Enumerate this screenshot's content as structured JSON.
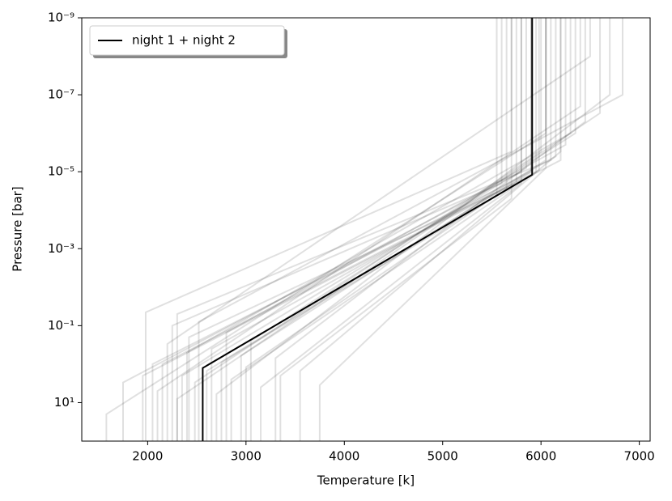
{
  "chart_data": {
    "type": "line",
    "x_label": "Temperature [k]",
    "y_label": "Pressure [bar]",
    "xlim": [
      1330,
      7110
    ],
    "xticks": [
      2000,
      3000,
      4000,
      5000,
      6000,
      7000
    ],
    "ylim": [
      100,
      1e-09
    ],
    "y_log": true,
    "yticks": [
      {
        "value": 1e-09,
        "label": "10⁻⁹"
      },
      {
        "value": 1e-07,
        "label": "10⁻⁷"
      },
      {
        "value": 1e-05,
        "label": "10⁻⁵"
      },
      {
        "value": 0.001,
        "label": "10⁻³"
      },
      {
        "value": 0.1,
        "label": "10⁻¹"
      },
      {
        "value": 10,
        "label": "10¹"
      }
    ],
    "legend_position": "upper left",
    "series": [
      {
        "name": "night 1 + night 2",
        "color": "#000000",
        "x": [
          2560,
          2560,
          5910,
          5910
        ],
        "values": [
          100,
          1.26,
          1.2e-05,
          1e-09
        ]
      },
      {
        "color": "#000000",
        "x": [
          1580,
          1580,
          6050,
          6050
        ],
        "values": [
          100,
          20,
          1e-06,
          1e-09
        ]
      },
      {
        "color": "#000000",
        "x": [
          1750,
          1750,
          5800,
          5800
        ],
        "values": [
          100,
          3,
          1e-05,
          1e-09
        ]
      },
      {
        "color": "#000000",
        "x": [
          1950,
          1950,
          6200,
          6200
        ],
        "values": [
          100,
          2,
          5e-06,
          1e-09
        ]
      },
      {
        "color": "#000000",
        "x": [
          1980,
          1980,
          5700,
          5700
        ],
        "values": [
          100,
          0.045,
          3e-06,
          1e-09
        ]
      },
      {
        "color": "#000000",
        "x": [
          2100,
          2100,
          6400,
          6400
        ],
        "values": [
          100,
          5,
          2e-07,
          1e-09
        ]
      },
      {
        "color": "#000000",
        "x": [
          2150,
          2150,
          5950,
          5950
        ],
        "values": [
          100,
          1,
          1e-05,
          1e-09
        ]
      },
      {
        "color": "#000000",
        "x": [
          2200,
          2200,
          6500,
          6500
        ],
        "values": [
          100,
          0.3,
          1e-08,
          1e-09
        ]
      },
      {
        "color": "#000000",
        "x": [
          2250,
          2250,
          5600,
          5600
        ],
        "values": [
          100,
          0.1,
          2e-05,
          1e-09
        ]
      },
      {
        "color": "#000000",
        "x": [
          2300,
          2300,
          6100,
          6100
        ],
        "values": [
          100,
          0.05,
          5e-06,
          1e-09
        ]
      },
      {
        "color": "#000000",
        "x": [
          2350,
          2350,
          5850,
          5850
        ],
        "values": [
          100,
          2,
          8e-06,
          1e-09
        ]
      },
      {
        "color": "#000000",
        "x": [
          2400,
          2400,
          6300,
          6300
        ],
        "values": [
          100,
          0.5,
          1e-06,
          1e-09
        ]
      },
      {
        "color": "#000000",
        "x": [
          2420,
          2420,
          5750,
          5750
        ],
        "values": [
          100,
          0.2,
          2e-05,
          1e-09
        ]
      },
      {
        "color": "#000000",
        "x": [
          2480,
          2480,
          6000,
          6000
        ],
        "values": [
          100,
          3,
          3e-06,
          1e-09
        ]
      },
      {
        "color": "#000000",
        "x": [
          2520,
          2520,
          6830,
          6830
        ],
        "values": [
          100,
          0.08,
          1e-07,
          1e-09
        ]
      },
      {
        "color": "#000000",
        "x": [
          2600,
          2600,
          5900,
          5900
        ],
        "values": [
          100,
          1.5,
          1e-05,
          1e-09
        ]
      },
      {
        "color": "#000000",
        "x": [
          2650,
          2650,
          6150,
          6150
        ],
        "values": [
          100,
          0.4,
          4e-06,
          1e-09
        ]
      },
      {
        "color": "#000000",
        "x": [
          2700,
          2700,
          6700,
          6700
        ],
        "values": [
          100,
          6,
          1e-07,
          1e-09
        ]
      },
      {
        "color": "#000000",
        "x": [
          2750,
          2750,
          5650,
          5650
        ],
        "values": [
          100,
          0.9,
          3e-05,
          1e-09
        ]
      },
      {
        "color": "#000000",
        "x": [
          2800,
          2800,
          6250,
          6250
        ],
        "values": [
          100,
          0.15,
          2e-06,
          1e-09
        ]
      },
      {
        "color": "#000000",
        "x": [
          2850,
          2850,
          5980,
          5980
        ],
        "values": [
          100,
          2.5,
          9e-06,
          1e-09
        ]
      },
      {
        "color": "#000000",
        "x": [
          2950,
          2950,
          6050,
          6050
        ],
        "values": [
          100,
          0.6,
          5e-06,
          1e-09
        ]
      },
      {
        "color": "#000000",
        "x": [
          3000,
          3000,
          5550,
          5550
        ],
        "values": [
          100,
          1.2,
          4e-05,
          1e-09
        ]
      },
      {
        "color": "#000000",
        "x": [
          3050,
          3050,
          6350,
          6350
        ],
        "values": [
          100,
          0.25,
          1e-06,
          1e-09
        ]
      },
      {
        "color": "#000000",
        "x": [
          3150,
          3150,
          5800,
          5800
        ],
        "values": [
          100,
          4,
          2e-05,
          1e-09
        ]
      },
      {
        "color": "#000000",
        "x": [
          3300,
          3300,
          6450,
          6450
        ],
        "values": [
          100,
          0.7,
          5e-07,
          1e-09
        ]
      },
      {
        "color": "#000000",
        "x": [
          3350,
          3350,
          5700,
          5700
        ],
        "values": [
          100,
          2,
          5e-05,
          1e-09
        ]
      },
      {
        "color": "#000000",
        "x": [
          3550,
          3550,
          6200,
          6200
        ],
        "values": [
          100,
          1.5,
          3e-06,
          1e-09
        ]
      },
      {
        "color": "#000000",
        "x": [
          3750,
          3750,
          6050,
          6050
        ],
        "values": [
          100,
          3.5,
          8e-06,
          1e-09
        ]
      },
      {
        "color": "#000000",
        "x": [
          2300,
          2300,
          6600,
          6600
        ],
        "values": [
          100,
          8,
          3e-07,
          1e-09
        ]
      },
      {
        "color": "#000000",
        "x": [
          2050,
          2050,
          5900,
          5900
        ],
        "values": [
          100,
          1,
          1e-05,
          1e-09
        ]
      }
    ]
  }
}
